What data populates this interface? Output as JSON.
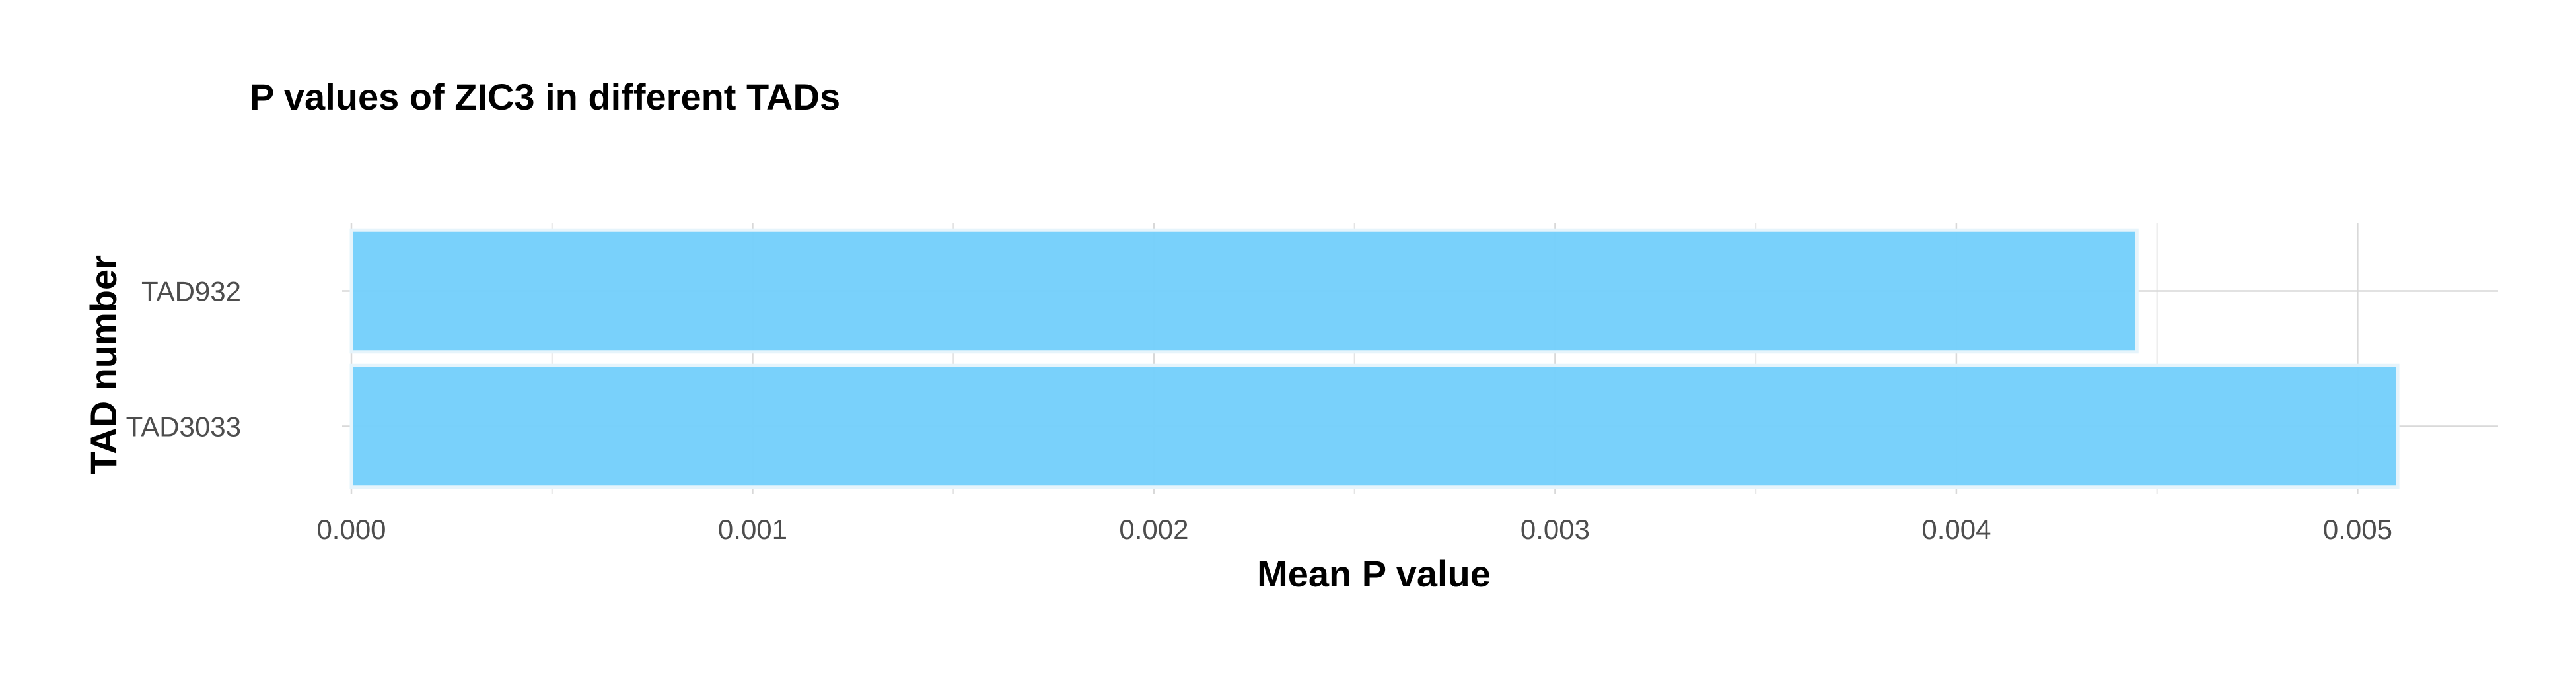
{
  "chart_data": {
    "type": "bar",
    "orientation": "horizontal",
    "title": "P values of ZIC3 in different TADs",
    "xlabel": "Mean P value",
    "ylabel": "TAD number",
    "categories": [
      "TAD932",
      "TAD3033"
    ],
    "values": [
      0.00445,
      0.0051
    ],
    "xlim": [
      0,
      0.00535
    ],
    "xticks": [
      0.0,
      0.001,
      0.002,
      0.003,
      0.004,
      0.005
    ],
    "xtick_labels": [
      "0.000",
      "0.001",
      "0.002",
      "0.003",
      "0.004",
      "0.005"
    ],
    "grid": true,
    "legend": "none",
    "bar_color": "#75CFFB",
    "bar_border_color": "#E6F4FB"
  }
}
